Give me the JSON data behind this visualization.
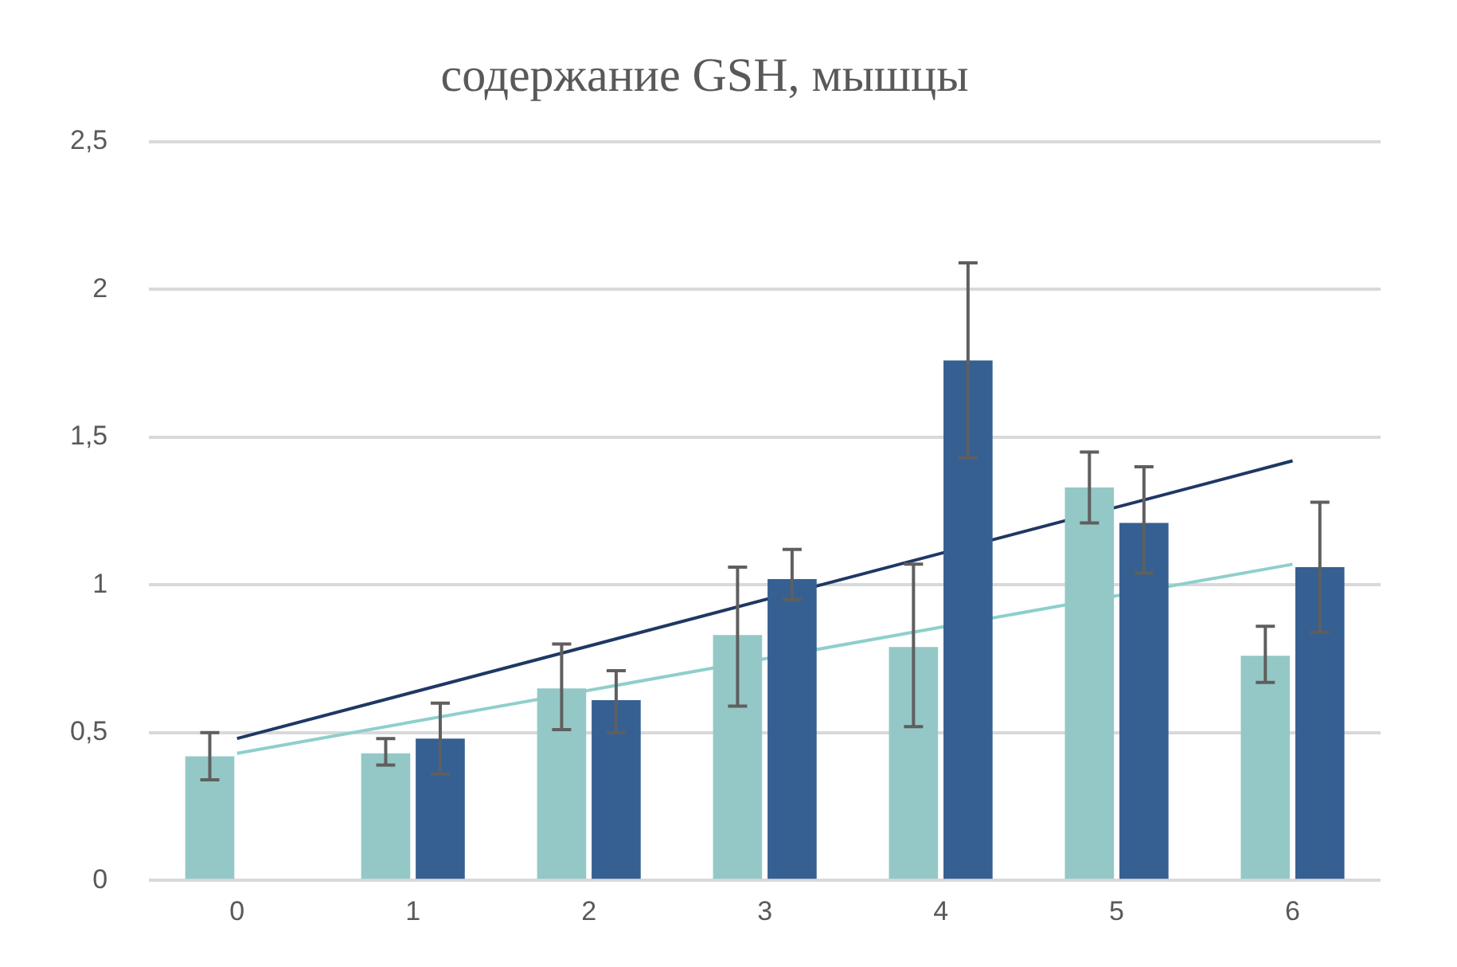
{
  "chart_data": {
    "type": "bar",
    "title": "содержание GSH, мышцы",
    "categories": [
      "0",
      "1",
      "2",
      "3",
      "4",
      "5",
      "6"
    ],
    "series": [
      {
        "color": "#94c8c6",
        "values": [
          0.42,
          0.43,
          0.65,
          0.83,
          0.79,
          1.33,
          0.76
        ],
        "errors": [
          [
            0.34,
            0.5
          ],
          [
            0.39,
            0.48
          ],
          [
            0.51,
            0.8
          ],
          [
            0.59,
            1.06
          ],
          [
            0.52,
            1.07
          ],
          [
            1.21,
            1.45
          ],
          [
            0.67,
            0.86
          ]
        ]
      },
      {
        "color": "#366092",
        "values": [
          null,
          0.48,
          0.61,
          1.02,
          1.76,
          1.21,
          1.06
        ],
        "errors": [
          null,
          [
            0.36,
            0.6
          ],
          [
            0.5,
            0.71
          ],
          [
            0.95,
            1.12
          ],
          [
            1.43,
            2.09
          ],
          [
            1.04,
            1.4
          ],
          [
            0.84,
            1.28
          ]
        ]
      },
      {
        "type": "line",
        "color": "#1f3864",
        "x": [
          "0",
          "6"
        ],
        "values": [
          0.48,
          1.42
        ]
      },
      {
        "type": "line",
        "color": "#8ecfcc",
        "x": [
          "0",
          "6"
        ],
        "values": [
          0.43,
          1.07
        ]
      }
    ],
    "ylim": [
      0,
      2.5
    ],
    "yticks": [
      {
        "value": 0,
        "label": "0"
      },
      {
        "value": 0.5,
        "label": "0,5"
      },
      {
        "value": 1,
        "label": "1"
      },
      {
        "value": 1.5,
        "label": "1,5"
      },
      {
        "value": 2,
        "label": "2"
      },
      {
        "value": 2.5,
        "label": "2,5"
      }
    ],
    "grid": "y",
    "legend": false,
    "marker": "none"
  }
}
